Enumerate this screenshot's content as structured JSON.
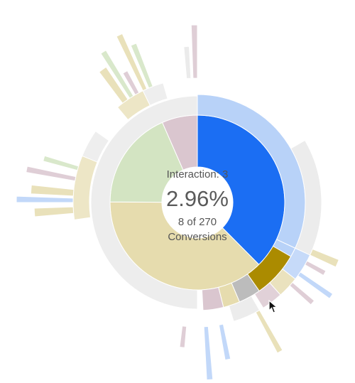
{
  "center": {
    "interaction_label": "Interaction: 3",
    "percentage": "2.96%",
    "count_text": "8 of 270",
    "unit_label": "Conversions"
  },
  "colors": {
    "highlight_blue": "#1b6ef3",
    "light_blue": "#b8d2f8",
    "olive_gold": "#ab8b00",
    "beige": "#e6dcae",
    "light_green": "#d3e4c2",
    "mauve": "#dac6cf",
    "gray": "#bcbcbc",
    "light_gray": "#e8e8e8",
    "dim_gray": "#ececec"
  },
  "chart_data": {
    "type": "sunburst",
    "selected_segment": "Interaction: 3",
    "rings": [
      {
        "depth": 1,
        "segments": [
          {
            "value": 8,
            "color": "highlight_blue",
            "selected": true
          },
          {
            "value": 8,
            "color": "beige"
          },
          {
            "value": 3.9,
            "color": "light_green"
          },
          {
            "value": 1.4,
            "color": "mauve"
          }
        ]
      }
    ],
    "total_conversions": 270,
    "highlighted_conversions": 8,
    "highlighted_share_percent": 2.96
  }
}
